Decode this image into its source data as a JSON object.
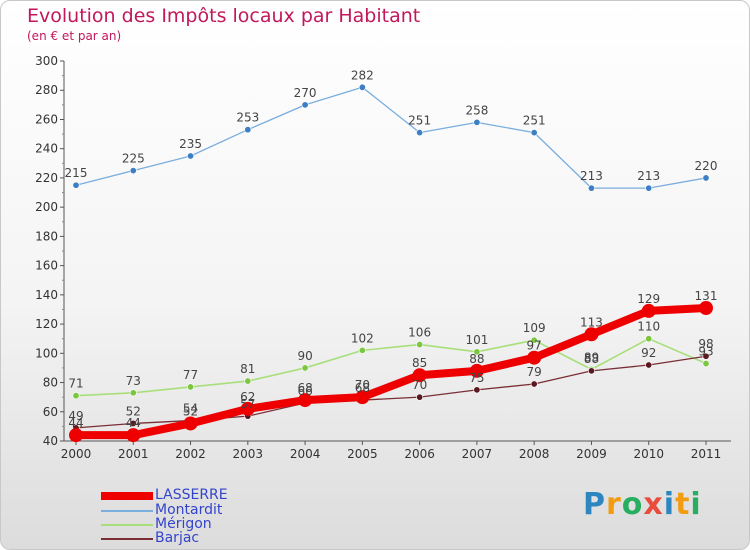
{
  "header": {
    "title": "Evolution des Impôts locaux par Habitant",
    "subtitle": "(en € et par an)"
  },
  "colors": {
    "title": "#c2185b",
    "legend_text": "#3344cc",
    "axis": "#555555",
    "grid": "#cccccc"
  },
  "chart_data": {
    "type": "line",
    "title": "Evolution des Impôts locaux par Habitant",
    "subtitle": "(en € et par an)",
    "xlabel": "",
    "ylabel": "",
    "x": [
      2000,
      2001,
      2002,
      2003,
      2004,
      2005,
      2006,
      2007,
      2008,
      2009,
      2010,
      2011
    ],
    "ylim": [
      40,
      300
    ],
    "yticks": [
      40,
      60,
      80,
      100,
      120,
      140,
      160,
      180,
      200,
      220,
      240,
      260,
      280,
      300
    ],
    "grid": false,
    "legend_position": "bottom-left",
    "series": [
      {
        "name": "LASSERRE",
        "color": "#ee0000",
        "marker": "#ee0000",
        "width": 8,
        "values": [
          44,
          44,
          52,
          62,
          68,
          70,
          85,
          88,
          97,
          113,
          129,
          131
        ]
      },
      {
        "name": "Montardit",
        "color": "#7aaede",
        "marker": "#3c7fc4",
        "width": 1.3,
        "values": [
          215,
          225,
          235,
          253,
          270,
          282,
          251,
          258,
          251,
          213,
          213,
          220
        ]
      },
      {
        "name": "Mérigon",
        "color": "#a8df7a",
        "marker": "#7cc642",
        "width": 1.6,
        "values": [
          71,
          73,
          77,
          81,
          90,
          102,
          106,
          101,
          109,
          89,
          110,
          93
        ]
      },
      {
        "name": "Barjac",
        "color": "#7a2e36",
        "marker": "#5a1820",
        "width": 1.3,
        "values": [
          49,
          52,
          54,
          57,
          66,
          68,
          70,
          75,
          79,
          88,
          92,
          98
        ]
      }
    ]
  },
  "brand": {
    "name": "Proxiti",
    "letters": [
      {
        "ch": "P",
        "color": "#2e86c1"
      },
      {
        "ch": "r",
        "color": "#f39c12"
      },
      {
        "ch": "o",
        "color": "#27ae60"
      },
      {
        "ch": "x",
        "color": "#e74c3c"
      },
      {
        "ch": "i",
        "color": "#2e86c1"
      },
      {
        "ch": "t",
        "color": "#f39c12"
      },
      {
        "ch": "i",
        "color": "#27ae60"
      }
    ]
  }
}
